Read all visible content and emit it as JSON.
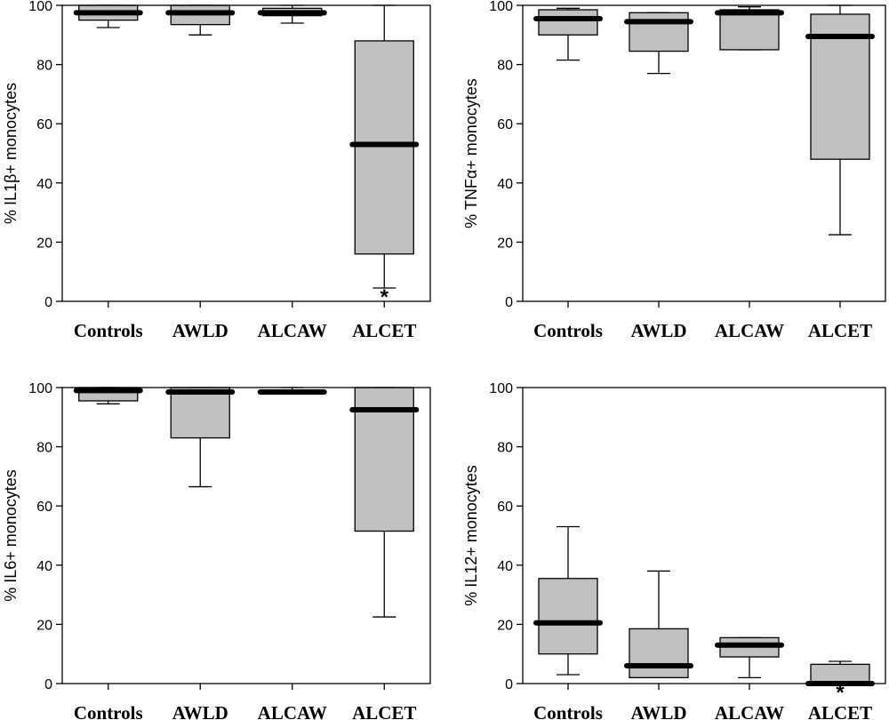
{
  "chart_data": [
    {
      "type": "box",
      "ylabel": "% IL1β+ monocytes",
      "ylim": [
        0,
        100
      ],
      "yticks": [
        0,
        20,
        40,
        60,
        80,
        100
      ],
      "categories": [
        "Controls",
        "AWLD",
        "ALCAW",
        "ALCET"
      ],
      "boxes": [
        {
          "category": "Controls",
          "min": 92.5,
          "q1": 95,
          "median": 97.5,
          "q3": 100,
          "max": 100,
          "annotation": ""
        },
        {
          "category": "AWLD",
          "min": 90,
          "q1": 93.5,
          "median": 97.5,
          "q3": 100,
          "max": 100,
          "annotation": ""
        },
        {
          "category": "ALCAW",
          "min": 94,
          "q1": 96.5,
          "median": 97.5,
          "q3": 99,
          "max": 100,
          "annotation": ""
        },
        {
          "category": "ALCET",
          "min": 4.5,
          "q1": 16,
          "median": 53,
          "q3": 88,
          "max": 100,
          "annotation": "*"
        }
      ]
    },
    {
      "type": "box",
      "ylabel": "% TNFα+ monocytes",
      "ylim": [
        0,
        100
      ],
      "yticks": [
        0,
        20,
        40,
        60,
        80,
        100
      ],
      "categories": [
        "Controls",
        "AWLD",
        "ALCAW",
        "ALCET"
      ],
      "boxes": [
        {
          "category": "Controls",
          "min": 81.5,
          "q1": 90,
          "median": 95.5,
          "q3": 98.5,
          "max": 99,
          "annotation": ""
        },
        {
          "category": "AWLD",
          "min": 77,
          "q1": 84.5,
          "median": 94.5,
          "q3": 97.5,
          "max": 97.5,
          "annotation": ""
        },
        {
          "category": "ALCAW",
          "min": 85,
          "q1": 85,
          "median": 97.5,
          "q3": 98.5,
          "max": 99.5,
          "annotation": ""
        },
        {
          "category": "ALCET",
          "min": 22.5,
          "q1": 48,
          "median": 89.5,
          "q3": 97,
          "max": 100,
          "annotation": ""
        }
      ]
    },
    {
      "type": "box",
      "ylabel": "% IL6+ monocytes",
      "ylim": [
        0,
        100
      ],
      "yticks": [
        0,
        20,
        40,
        60,
        80,
        100
      ],
      "categories": [
        "Controls",
        "AWLD",
        "ALCAW",
        "ALCET"
      ],
      "boxes": [
        {
          "category": "Controls",
          "min": 94.5,
          "q1": 95.5,
          "median": 99,
          "q3": 100,
          "max": 100,
          "annotation": ""
        },
        {
          "category": "AWLD",
          "min": 66.5,
          "q1": 83,
          "median": 98.5,
          "q3": 100,
          "max": 100,
          "annotation": ""
        },
        {
          "category": "ALCAW",
          "min": 98,
          "q1": 98,
          "median": 98.5,
          "q3": 99,
          "max": 100,
          "annotation": ""
        },
        {
          "category": "ALCET",
          "min": 22.5,
          "q1": 51.5,
          "median": 92.5,
          "q3": 100,
          "max": 100,
          "annotation": ""
        }
      ]
    },
    {
      "type": "box",
      "ylabel": "% IL12+ monocytes",
      "ylim": [
        0,
        100
      ],
      "yticks": [
        0,
        20,
        40,
        60,
        80,
        100
      ],
      "categories": [
        "Controls",
        "AWLD",
        "ALCAW",
        "ALCET"
      ],
      "boxes": [
        {
          "category": "Controls",
          "min": 3,
          "q1": 10,
          "median": 20.5,
          "q3": 35.5,
          "max": 53,
          "annotation": ""
        },
        {
          "category": "AWLD",
          "min": 2,
          "q1": 2,
          "median": 6,
          "q3": 18.5,
          "max": 38,
          "annotation": ""
        },
        {
          "category": "ALCAW",
          "min": 2,
          "q1": 9,
          "median": 13,
          "q3": 15.5,
          "max": 15.5,
          "annotation": ""
        },
        {
          "category": "ALCET",
          "min": 0,
          "q1": 0,
          "median": 0,
          "q3": 6.5,
          "max": 7.5,
          "annotation": "*"
        }
      ]
    }
  ]
}
